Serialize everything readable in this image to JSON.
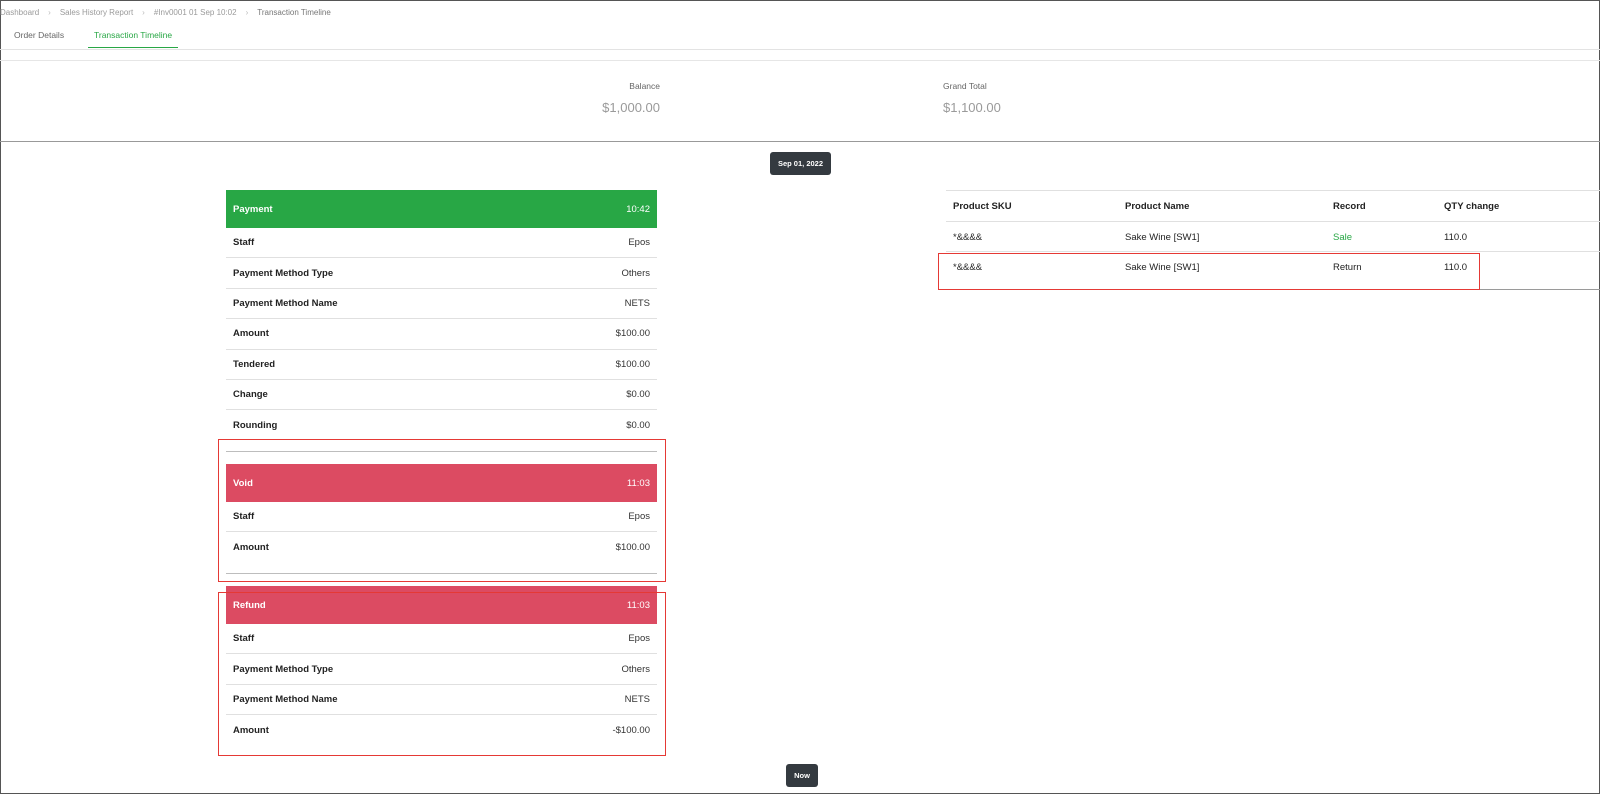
{
  "breadcrumb": [
    "Dashboard",
    "Sales History Report",
    "#Inv0001 01 Sep 10:02",
    "Transaction Timeline"
  ],
  "tabs": [
    {
      "label": "Order Details",
      "active": false
    },
    {
      "label": "Transaction Timeline",
      "active": true
    }
  ],
  "totals": {
    "balance_label": "Balance",
    "balance_value": "$1,000.00",
    "grand_total_label": "Grand Total",
    "grand_total_value": "$1,100.00"
  },
  "timeline": {
    "date": "Sep 01, 2022",
    "end_label": "Now"
  },
  "payment": {
    "title": "Payment",
    "time": "10:42",
    "rows": [
      {
        "label": "Staff",
        "value": "Epos"
      },
      {
        "label": "Payment Method Type",
        "value": "Others"
      },
      {
        "label": "Payment Method Name",
        "value": "NETS"
      },
      {
        "label": "Amount",
        "value": "$100.00"
      },
      {
        "label": "Tendered",
        "value": "$100.00"
      },
      {
        "label": "Change",
        "value": "$0.00"
      },
      {
        "label": "Rounding",
        "value": "$0.00"
      }
    ]
  },
  "void": {
    "title": "Void",
    "time": "11:03",
    "rows": [
      {
        "label": "Staff",
        "value": "Epos"
      },
      {
        "label": "Amount",
        "value": "$100.00"
      }
    ]
  },
  "refund": {
    "title": "Refund",
    "time": "11:03",
    "rows": [
      {
        "label": "Staff",
        "value": "Epos"
      },
      {
        "label": "Payment Method Type",
        "value": "Others"
      },
      {
        "label": "Payment Method Name",
        "value": "NETS"
      },
      {
        "label": "Amount",
        "value": "-$100.00"
      }
    ]
  },
  "products": {
    "headers": [
      "Product SKU",
      "Product Name",
      "Record",
      "QTY change"
    ],
    "rows": [
      {
        "sku": "*&&&&",
        "name": "Sake Wine [SW1]",
        "record": "Sale",
        "qty": "110.0"
      },
      {
        "sku": "*&&&&",
        "name": "Sake Wine [SW1]",
        "record": "Return",
        "qty": "110.0"
      }
    ]
  },
  "colors": {
    "accent": "#28a745",
    "danger": "#dc4b62",
    "highlight": "#e53935",
    "pill": "#343a40"
  }
}
